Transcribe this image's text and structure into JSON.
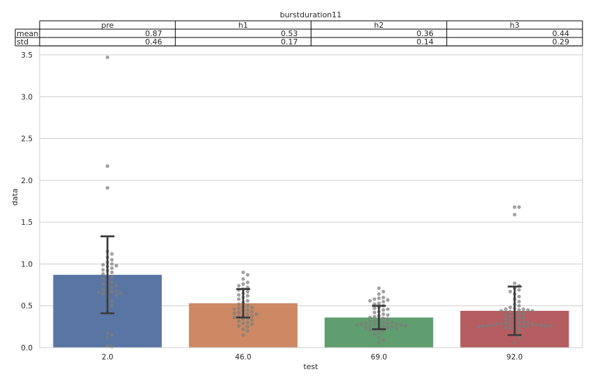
{
  "chart_data": {
    "type": "bar",
    "title": "burstduration11",
    "xlabel": "test",
    "ylabel": "data",
    "categories": [
      "2.0",
      "46.0",
      "69.0",
      "92.0"
    ],
    "values": [
      0.87,
      0.53,
      0.36,
      0.44
    ],
    "std": [
      0.46,
      0.17,
      0.14,
      0.29
    ],
    "ylim": [
      0,
      3.6
    ],
    "yticks": [
      "0.0",
      "0.5",
      "1.0",
      "1.5",
      "2.0",
      "2.5",
      "3.0",
      "3.5"
    ],
    "grid": true,
    "bar_colors": [
      "#5875a4",
      "#cc8963",
      "#5f9e6e",
      "#b55d60"
    ],
    "point_color": "#7d7d7d",
    "table": {
      "columns": [
        "pre",
        "h1",
        "h2",
        "h3"
      ],
      "rows": [
        {
          "label": "mean",
          "values": [
            "0.87",
            "0.53",
            "0.36",
            "0.44"
          ]
        },
        {
          "label": "std",
          "values": [
            "0.46",
            "0.17",
            "0.14",
            "0.29"
          ]
        }
      ]
    },
    "points": [
      [
        3.47,
        2.17,
        1.91,
        1.15,
        1.12,
        1.08,
        1.05,
        1.02,
        1.0,
        0.99,
        0.98,
        0.97,
        0.95,
        0.93,
        0.92,
        0.9,
        0.88,
        0.86,
        0.84,
        0.82,
        0.8,
        0.78,
        0.76,
        0.75,
        0.74,
        0.72,
        0.7,
        0.69,
        0.68,
        0.67,
        0.66,
        0.65,
        0.65,
        0.64,
        0.63,
        0.6,
        0.56,
        0.53,
        0.5,
        0.47,
        0.18,
        0.15,
        0.12,
        0.02,
        0.01
      ],
      [
        0.9,
        0.87,
        0.82,
        0.78,
        0.76,
        0.74,
        0.72,
        0.7,
        0.69,
        0.67,
        0.65,
        0.63,
        0.62,
        0.6,
        0.58,
        0.56,
        0.54,
        0.52,
        0.5,
        0.49,
        0.48,
        0.47,
        0.46,
        0.45,
        0.44,
        0.43,
        0.42,
        0.41,
        0.4,
        0.4,
        0.39,
        0.38,
        0.37,
        0.36,
        0.35,
        0.34,
        0.33,
        0.32,
        0.3,
        0.29,
        0.28,
        0.26,
        0.25,
        0.22,
        0.2,
        0.15
      ],
      [
        0.71,
        0.67,
        0.64,
        0.6,
        0.59,
        0.58,
        0.57,
        0.56,
        0.55,
        0.53,
        0.52,
        0.5,
        0.48,
        0.47,
        0.46,
        0.45,
        0.43,
        0.42,
        0.4,
        0.39,
        0.38,
        0.37,
        0.36,
        0.35,
        0.34,
        0.33,
        0.32,
        0.31,
        0.3,
        0.3,
        0.29,
        0.29,
        0.28,
        0.28,
        0.28,
        0.27,
        0.27,
        0.27,
        0.26,
        0.26,
        0.25,
        0.25,
        0.24,
        0.24,
        0.23,
        0.23,
        0.22,
        0.21,
        0.2,
        0.18,
        0.16,
        0.12,
        0.09,
        0.06
      ],
      [
        1.68,
        1.68,
        1.59,
        0.77,
        0.74,
        0.71,
        0.69,
        0.67,
        0.64,
        0.61,
        0.58,
        0.55,
        0.52,
        0.5,
        0.48,
        0.47,
        0.46,
        0.46,
        0.45,
        0.45,
        0.44,
        0.44,
        0.43,
        0.42,
        0.41,
        0.4,
        0.39,
        0.38,
        0.37,
        0.36,
        0.35,
        0.34,
        0.33,
        0.32,
        0.31,
        0.3,
        0.3,
        0.29,
        0.29,
        0.28,
        0.28,
        0.28,
        0.27,
        0.27,
        0.27,
        0.27,
        0.26,
        0.26,
        0.26,
        0.26,
        0.26,
        0.25,
        0.25,
        0.25,
        0.24,
        0.23,
        0.22,
        0.2,
        0.16,
        0.12,
        0.06
      ]
    ]
  }
}
